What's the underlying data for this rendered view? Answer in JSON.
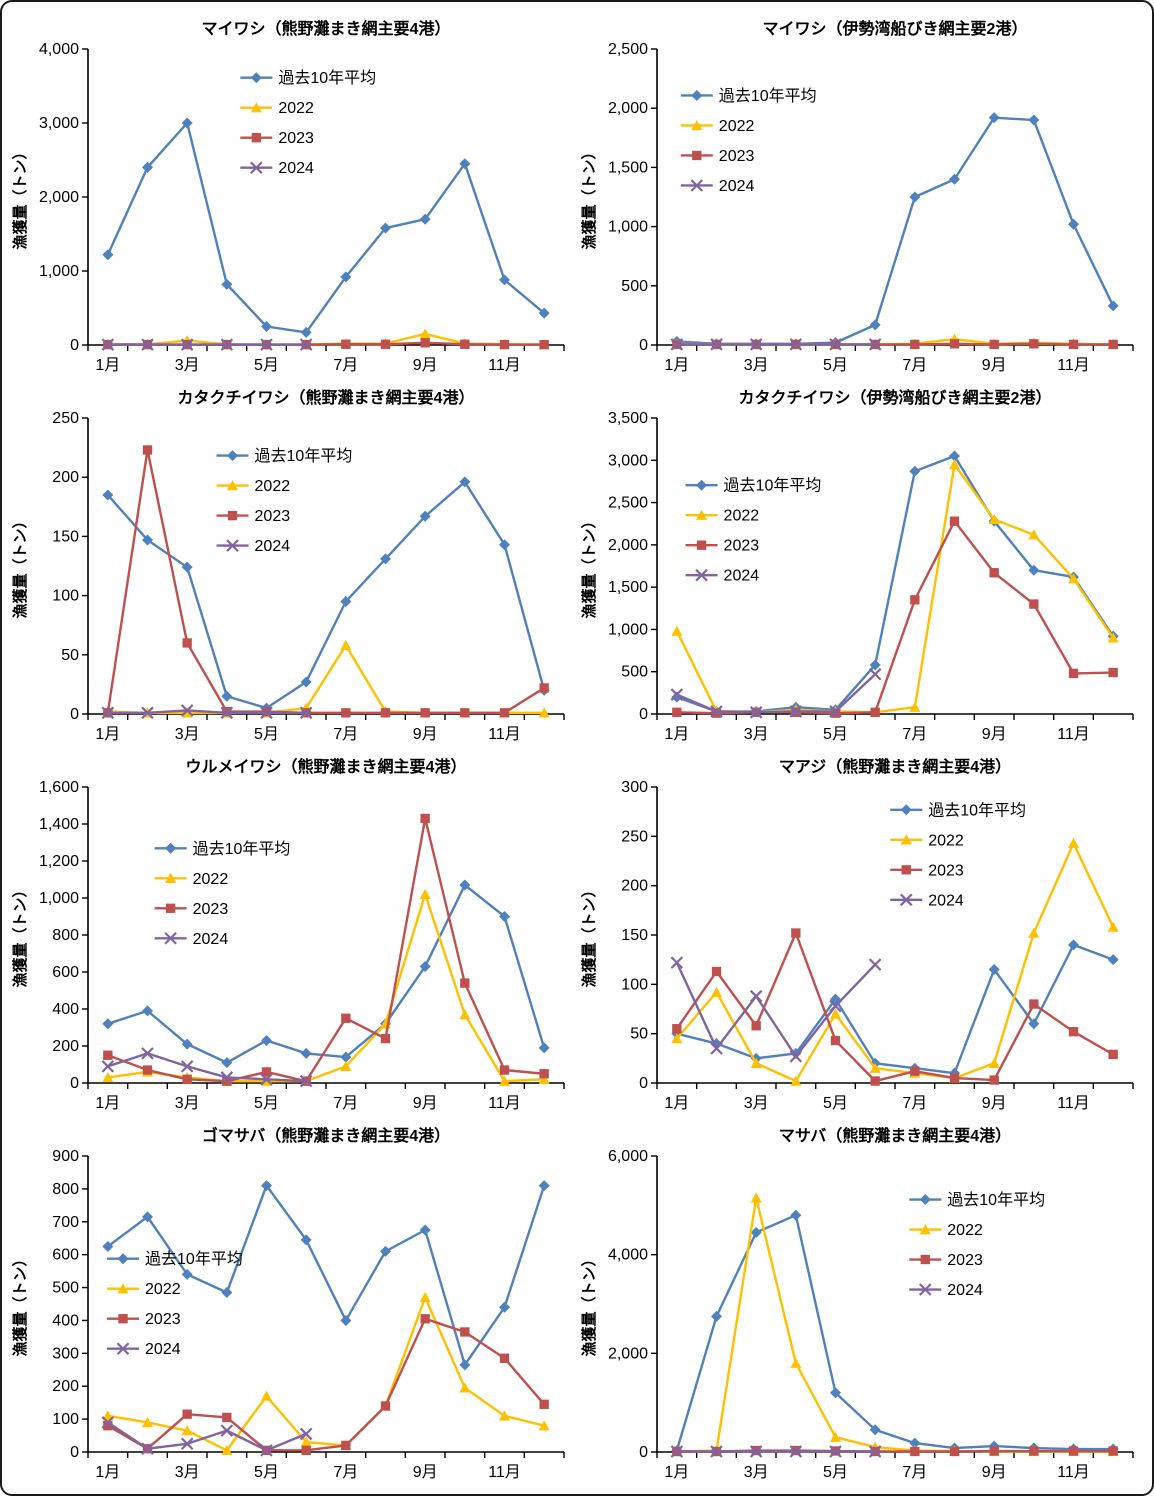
{
  "page": {
    "background": "#FFFFFF",
    "frame_border_color": "#1a1a1a"
  },
  "chart_data": [
    {
      "type": "line",
      "title": "マイワシ（熊野灘まき網主要4港）",
      "ylabel": "漁獲量（トン）",
      "ylim": [
        0,
        4000
      ],
      "ytick_step": 1000,
      "grid": false,
      "legend_pos": [
        0.32,
        0.07
      ],
      "categories": [
        "1月",
        "2月",
        "3月",
        "4月",
        "5月",
        "6月",
        "7月",
        "8月",
        "9月",
        "10月",
        "11月",
        "12月"
      ],
      "series": [
        {
          "name": "過去10年平均",
          "color": "#4F81BD",
          "marker": "diamond",
          "values": [
            1220,
            2400,
            3000,
            820,
            250,
            170,
            920,
            1580,
            1700,
            2450,
            880,
            430
          ]
        },
        {
          "name": "2022",
          "color": "#FFC000",
          "marker": "triangle",
          "values": [
            10,
            10,
            60,
            10,
            5,
            5,
            20,
            20,
            150,
            20,
            10,
            5
          ]
        },
        {
          "name": "2023",
          "color": "#C0504D",
          "marker": "square",
          "values": [
            5,
            5,
            5,
            5,
            5,
            5,
            10,
            10,
            30,
            10,
            5,
            5
          ]
        },
        {
          "name": "2024",
          "color": "#8064A2",
          "marker": "x",
          "values": [
            5,
            5,
            5,
            5,
            5,
            5,
            null,
            null,
            null,
            null,
            null,
            null
          ]
        }
      ]
    },
    {
      "type": "line",
      "title": "マイワシ（伊勢湾船びき網主要2港）",
      "ylabel": "漁獲量（トン）",
      "ylim": [
        0,
        2500
      ],
      "ytick_step": 500,
      "grid": false,
      "legend_pos": [
        0.05,
        0.13
      ],
      "categories": [
        "1月",
        "2月",
        "3月",
        "4月",
        "5月",
        "6月",
        "7月",
        "8月",
        "9月",
        "10月",
        "11月",
        "12月"
      ],
      "series": [
        {
          "name": "過去10年平均",
          "color": "#4F81BD",
          "marker": "diamond",
          "values": [
            30,
            10,
            10,
            10,
            20,
            170,
            1250,
            1400,
            1920,
            1900,
            1020,
            330
          ]
        },
        {
          "name": "2022",
          "color": "#FFC000",
          "marker": "triangle",
          "values": [
            10,
            5,
            5,
            5,
            5,
            5,
            10,
            50,
            10,
            20,
            10,
            5
          ]
        },
        {
          "name": "2023",
          "color": "#C0504D",
          "marker": "square",
          "values": [
            5,
            5,
            5,
            5,
            5,
            5,
            5,
            10,
            5,
            10,
            5,
            5
          ]
        },
        {
          "name": "2024",
          "color": "#8064A2",
          "marker": "x",
          "values": [
            5,
            5,
            5,
            5,
            5,
            5,
            null,
            null,
            null,
            null,
            null,
            null
          ]
        }
      ]
    },
    {
      "type": "line",
      "title": "カタクチイワシ（熊野灘まき網主要4港）",
      "ylabel": "漁獲量（トン）",
      "ylim": [
        0,
        250
      ],
      "ytick_step": 50,
      "grid": false,
      "legend_pos": [
        0.27,
        0.1
      ],
      "categories": [
        "1月",
        "2月",
        "3月",
        "4月",
        "5月",
        "6月",
        "7月",
        "8月",
        "9月",
        "10月",
        "11月",
        "12月"
      ],
      "series": [
        {
          "name": "過去10年平均",
          "color": "#4F81BD",
          "marker": "diamond",
          "values": [
            185,
            147,
            124,
            15,
            5,
            27,
            95,
            131,
            167,
            196,
            143,
            20
          ]
        },
        {
          "name": "2022",
          "color": "#FFC000",
          "marker": "triangle",
          "values": [
            2,
            1,
            1,
            1,
            1,
            5,
            58,
            2,
            1,
            1,
            1,
            1
          ]
        },
        {
          "name": "2023",
          "color": "#C0504D",
          "marker": "square",
          "values": [
            1,
            223,
            60,
            2,
            2,
            1,
            1,
            1,
            1,
            1,
            1,
            22
          ]
        },
        {
          "name": "2024",
          "color": "#8064A2",
          "marker": "x",
          "values": [
            1,
            1,
            3,
            1,
            1,
            1,
            null,
            null,
            null,
            null,
            null,
            null
          ]
        }
      ]
    },
    {
      "type": "line",
      "title": "カタクチイワシ（伊勢湾船びき網主要2港）",
      "ylabel": "漁獲量（トン）",
      "ylim": [
        0,
        3500
      ],
      "ytick_step": 500,
      "grid": false,
      "legend_pos": [
        0.06,
        0.2
      ],
      "categories": [
        "1月",
        "2月",
        "3月",
        "4月",
        "5月",
        "6月",
        "7月",
        "8月",
        "9月",
        "10月",
        "11月",
        "12月"
      ],
      "series": [
        {
          "name": "過去10年平均",
          "color": "#4F81BD",
          "marker": "diamond",
          "values": [
            200,
            30,
            30,
            80,
            50,
            580,
            2870,
            3050,
            2280,
            1700,
            1620,
            920
          ]
        },
        {
          "name": "2022",
          "color": "#FFC000",
          "marker": "triangle",
          "values": [
            980,
            30,
            20,
            50,
            30,
            20,
            80,
            2950,
            2300,
            2120,
            1600,
            900
          ]
        },
        {
          "name": "2023",
          "color": "#C0504D",
          "marker": "square",
          "values": [
            20,
            10,
            20,
            20,
            10,
            20,
            1350,
            2280,
            1670,
            1300,
            480,
            490
          ]
        },
        {
          "name": "2024",
          "color": "#8064A2",
          "marker": "x",
          "values": [
            230,
            30,
            20,
            30,
            30,
            470,
            null,
            null,
            null,
            null,
            null,
            null
          ]
        }
      ]
    },
    {
      "type": "line",
      "title": "ウルメイワシ（熊野灘まき網主要4港）",
      "ylabel": "漁獲量（トン）",
      "ylim": [
        0,
        1600
      ],
      "ytick_step": 200,
      "grid": false,
      "legend_pos": [
        0.14,
        0.18
      ],
      "categories": [
        "1月",
        "2月",
        "3月",
        "4月",
        "5月",
        "6月",
        "7月",
        "8月",
        "9月",
        "10月",
        "11月",
        "12月"
      ],
      "series": [
        {
          "name": "過去10年平均",
          "color": "#4F81BD",
          "marker": "diamond",
          "values": [
            320,
            390,
            210,
            110,
            230,
            160,
            140,
            320,
            630,
            1070,
            900,
            190
          ]
        },
        {
          "name": "2022",
          "color": "#FFC000",
          "marker": "triangle",
          "values": [
            30,
            60,
            30,
            10,
            10,
            10,
            90,
            320,
            1020,
            370,
            10,
            20
          ]
        },
        {
          "name": "2023",
          "color": "#C0504D",
          "marker": "square",
          "values": [
            150,
            70,
            20,
            10,
            60,
            10,
            350,
            240,
            1430,
            540,
            70,
            50
          ]
        },
        {
          "name": "2024",
          "color": "#8064A2",
          "marker": "x",
          "values": [
            90,
            160,
            90,
            30,
            20,
            10,
            null,
            null,
            null,
            null,
            null,
            null
          ]
        }
      ]
    },
    {
      "type": "line",
      "title": "マアジ（熊野灘まき網主要4港）",
      "ylabel": "漁獲量（トン）",
      "ylim": [
        0,
        300
      ],
      "ytick_step": 50,
      "grid": false,
      "legend_pos": [
        0.49,
        0.05
      ],
      "categories": [
        "1月",
        "2月",
        "3月",
        "4月",
        "5月",
        "6月",
        "7月",
        "8月",
        "9月",
        "10月",
        "11月",
        "12月"
      ],
      "series": [
        {
          "name": "過去10年平均",
          "color": "#4F81BD",
          "marker": "diamond",
          "values": [
            50,
            40,
            25,
            30,
            85,
            20,
            15,
            10,
            115,
            60,
            140,
            125
          ]
        },
        {
          "name": "2022",
          "color": "#FFC000",
          "marker": "triangle",
          "values": [
            45,
            92,
            20,
            2,
            70,
            15,
            10,
            5,
            20,
            152,
            243,
            158
          ]
        },
        {
          "name": "2023",
          "color": "#C0504D",
          "marker": "square",
          "values": [
            55,
            113,
            58,
            152,
            43,
            2,
            12,
            5,
            3,
            80,
            52,
            29
          ]
        },
        {
          "name": "2024",
          "color": "#8064A2",
          "marker": "x",
          "values": [
            122,
            35,
            88,
            27,
            78,
            120,
            null,
            null,
            null,
            null,
            null,
            null
          ]
        }
      ]
    },
    {
      "type": "line",
      "title": "ゴマサバ（熊野灘まき網主要4港）",
      "ylabel": "漁獲量（トン）",
      "ylim": [
        0,
        900
      ],
      "ytick_step": 100,
      "grid": false,
      "legend_pos": [
        0.04,
        0.32
      ],
      "categories": [
        "1月",
        "2月",
        "3月",
        "4月",
        "5月",
        "6月",
        "7月",
        "8月",
        "9月",
        "10月",
        "11月",
        "12月"
      ],
      "series": [
        {
          "name": "過去10年平均",
          "color": "#4F81BD",
          "marker": "diamond",
          "values": [
            625,
            715,
            540,
            485,
            810,
            645,
            400,
            610,
            675,
            265,
            440,
            810
          ]
        },
        {
          "name": "2022",
          "color": "#FFC000",
          "marker": "triangle",
          "values": [
            110,
            90,
            65,
            5,
            170,
            30,
            20,
            140,
            470,
            195,
            110,
            80
          ]
        },
        {
          "name": "2023",
          "color": "#C0504D",
          "marker": "square",
          "values": [
            80,
            10,
            115,
            105,
            5,
            5,
            20,
            140,
            405,
            365,
            285,
            145
          ]
        },
        {
          "name": "2024",
          "color": "#8064A2",
          "marker": "x",
          "values": [
            90,
            10,
            25,
            65,
            5,
            55,
            null,
            null,
            null,
            null,
            null,
            null
          ]
        }
      ]
    },
    {
      "type": "line",
      "title": "マサバ（熊野灘まき網主要4港）",
      "ylabel": "漁獲量（トン）",
      "ylim": [
        0,
        6000
      ],
      "ytick_step": 2000,
      "grid": false,
      "legend_pos": [
        0.53,
        0.12
      ],
      "categories": [
        "1月",
        "2月",
        "3月",
        "4月",
        "5月",
        "6月",
        "7月",
        "8月",
        "9月",
        "10月",
        "11月",
        "12月"
      ],
      "series": [
        {
          "name": "過去10年平均",
          "color": "#4F81BD",
          "marker": "diamond",
          "values": [
            30,
            2750,
            4450,
            4800,
            1200,
            450,
            180,
            80,
            120,
            80,
            60,
            60
          ]
        },
        {
          "name": "2022",
          "color": "#FFC000",
          "marker": "triangle",
          "values": [
            10,
            30,
            5150,
            1800,
            300,
            100,
            30,
            20,
            10,
            10,
            10,
            10
          ]
        },
        {
          "name": "2023",
          "color": "#C0504D",
          "marker": "square",
          "values": [
            10,
            10,
            30,
            30,
            20,
            10,
            10,
            10,
            20,
            20,
            20,
            20
          ]
        },
        {
          "name": "2024",
          "color": "#8064A2",
          "marker": "x",
          "values": [
            10,
            10,
            10,
            10,
            10,
            10,
            null,
            null,
            null,
            null,
            null,
            null
          ]
        }
      ]
    }
  ]
}
